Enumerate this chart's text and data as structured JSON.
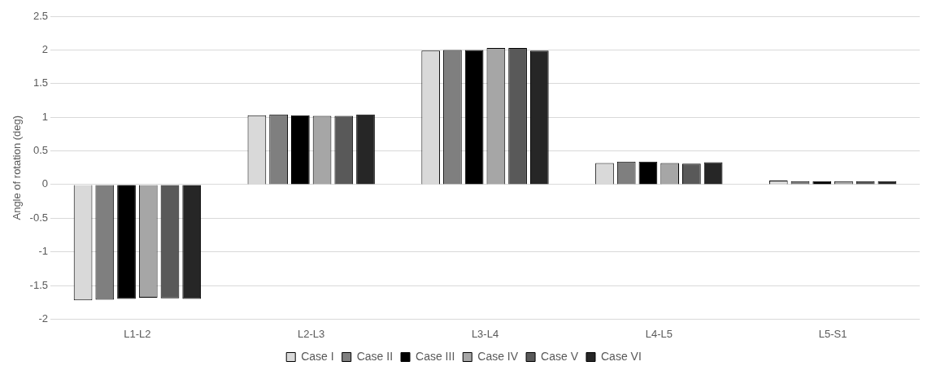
{
  "chart_data": {
    "type": "bar",
    "ylabel": "Angle of rotation (deg)",
    "categories": [
      "L1-L2",
      "L2-L3",
      "L3-L4",
      "L4-L5",
      "L5-S1"
    ],
    "series": [
      {
        "name": "Case I",
        "color": "#d9d9d9",
        "values": [
          -1.72,
          1.03,
          1.99,
          0.32,
          0.06
        ]
      },
      {
        "name": "Case II",
        "color": "#7f7f7f",
        "values": [
          -1.71,
          1.04,
          2.0,
          0.34,
          0.05
        ]
      },
      {
        "name": "Case III",
        "color": "#000000",
        "values": [
          -1.7,
          1.03,
          2.0,
          0.34,
          0.05
        ]
      },
      {
        "name": "Case IV",
        "color": "#a6a6a6",
        "values": [
          -1.68,
          1.02,
          2.03,
          0.32,
          0.05
        ]
      },
      {
        "name": "Case V",
        "color": "#595959",
        "values": [
          -1.69,
          1.02,
          2.03,
          0.31,
          0.05
        ]
      },
      {
        "name": "Case VI",
        "color": "#262626",
        "values": [
          -1.7,
          1.04,
          1.99,
          0.33,
          0.05
        ]
      }
    ],
    "ylim": [
      -2,
      2.5
    ],
    "yticks": [
      -2,
      -1.5,
      -1,
      -0.5,
      0,
      0.5,
      1,
      1.5,
      2,
      2.5
    ],
    "grid": "y",
    "legend": "bottom"
  }
}
